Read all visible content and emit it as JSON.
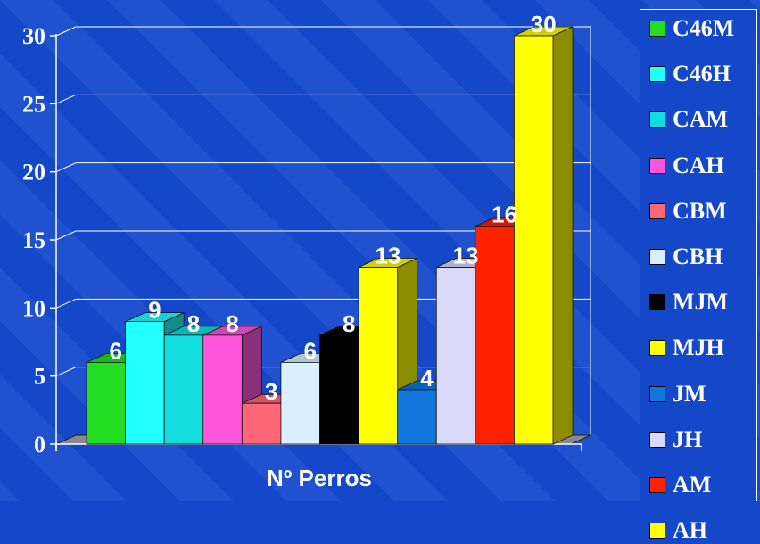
{
  "chart_data": {
    "type": "bar",
    "xlabel": "Nº Perros",
    "ylim": [
      0,
      30
    ],
    "yticks": [
      0,
      5,
      10,
      15,
      20,
      25,
      30
    ],
    "grid": true,
    "legend_position": "right",
    "series": [
      {
        "name": "C46M",
        "value": 6,
        "color": "#22dd22"
      },
      {
        "name": "C46H",
        "value": 9,
        "color": "#22ffff"
      },
      {
        "name": "CAM",
        "value": 8,
        "color": "#11dddd"
      },
      {
        "name": "CAH",
        "value": 8,
        "color": "#ff55dd"
      },
      {
        "name": "CBM",
        "value": 3,
        "color": "#ff6677"
      },
      {
        "name": "CBH",
        "value": 6,
        "color": "#d8f0ff"
      },
      {
        "name": "MJM",
        "value": 8,
        "color": "#000000"
      },
      {
        "name": "MJH",
        "value": 13,
        "color": "#ffff00"
      },
      {
        "name": "JM",
        "value": 4,
        "color": "#1177dd"
      },
      {
        "name": "JH",
        "value": 13,
        "color": "#d8d8f8"
      },
      {
        "name": "AM",
        "value": 16,
        "color": "#ff2200"
      },
      {
        "name": "AH",
        "value": 30,
        "color": "#ffff00"
      }
    ]
  }
}
